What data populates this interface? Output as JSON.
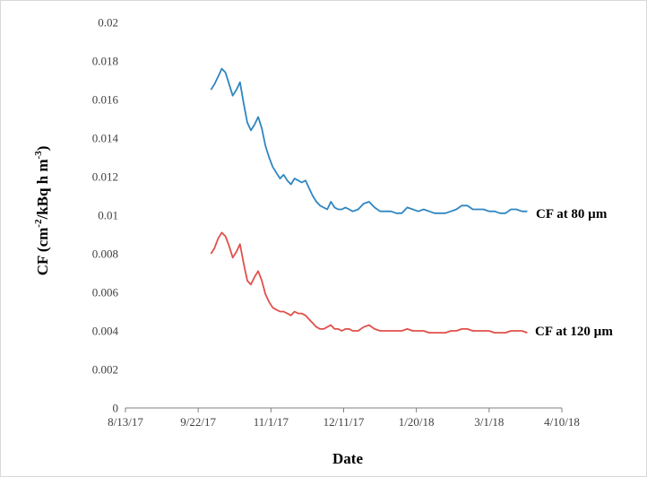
{
  "chart_data": {
    "type": "line",
    "title": "",
    "xlabel": "Date",
    "ylabel_parts": [
      "CF (cm",
      "-2",
      "/kBq h m",
      "-3",
      ")"
    ],
    "x_ticks": [
      "8/13/17",
      "9/22/17",
      "11/1/17",
      "12/11/17",
      "1/20/18",
      "3/1/18",
      "4/10/18"
    ],
    "y_ticks": [
      "0",
      "0.002",
      "0.004",
      "0.006",
      "0.008",
      "0.01",
      "0.012",
      "0.014",
      "0.016",
      "0.018",
      "0.02"
    ],
    "xlim": [
      "2017-08-13",
      "2018-04-10"
    ],
    "ylim": [
      0,
      0.02
    ],
    "grid": false,
    "legend": "none",
    "series": [
      {
        "name": "CF at 80 µm",
        "color": "#2e86c1",
        "x": [
          "2017-09-29",
          "2017-10-01",
          "2017-10-03",
          "2017-10-05",
          "2017-10-07",
          "2017-10-09",
          "2017-10-11",
          "2017-10-13",
          "2017-10-15",
          "2017-10-17",
          "2017-10-19",
          "2017-10-21",
          "2017-10-23",
          "2017-10-25",
          "2017-10-27",
          "2017-10-29",
          "2017-10-31",
          "2017-11-02",
          "2017-11-04",
          "2017-11-06",
          "2017-11-08",
          "2017-11-10",
          "2017-11-12",
          "2017-11-14",
          "2017-11-16",
          "2017-11-18",
          "2017-11-20",
          "2017-11-22",
          "2017-11-24",
          "2017-11-26",
          "2017-11-28",
          "2017-11-30",
          "2017-12-02",
          "2017-12-04",
          "2017-12-06",
          "2017-12-08",
          "2017-12-10",
          "2017-12-12",
          "2017-12-14",
          "2017-12-16",
          "2017-12-19",
          "2017-12-22",
          "2017-12-25",
          "2017-12-28",
          "2017-12-31",
          "2018-01-03",
          "2018-01-06",
          "2018-01-09",
          "2018-01-12",
          "2018-01-15",
          "2018-01-18",
          "2018-01-21",
          "2018-01-24",
          "2018-01-27",
          "2018-01-30",
          "2018-02-02",
          "2018-02-05",
          "2018-02-08",
          "2018-02-11",
          "2018-02-14",
          "2018-02-17",
          "2018-02-20",
          "2018-02-23",
          "2018-02-26",
          "2018-03-01",
          "2018-03-04",
          "2018-03-07",
          "2018-03-10",
          "2018-03-13",
          "2018-03-16",
          "2018-03-19",
          "2018-03-22"
        ],
        "y": [
          0.0165,
          0.0168,
          0.0172,
          0.0176,
          0.0174,
          0.0168,
          0.0162,
          0.0165,
          0.0169,
          0.0158,
          0.0148,
          0.0144,
          0.0147,
          0.0151,
          0.0145,
          0.0136,
          0.013,
          0.0125,
          0.0122,
          0.0119,
          0.0121,
          0.0118,
          0.0116,
          0.0119,
          0.0118,
          0.0117,
          0.0118,
          0.0114,
          0.011,
          0.0107,
          0.0105,
          0.0104,
          0.0103,
          0.0107,
          0.0104,
          0.0103,
          0.0103,
          0.0104,
          0.0103,
          0.0102,
          0.0103,
          0.0106,
          0.0107,
          0.0104,
          0.0102,
          0.0102,
          0.0102,
          0.0101,
          0.0101,
          0.0104,
          0.0103,
          0.0102,
          0.0103,
          0.0102,
          0.0101,
          0.0101,
          0.0101,
          0.0102,
          0.0103,
          0.0105,
          0.0105,
          0.0103,
          0.0103,
          0.0103,
          0.0102,
          0.0102,
          0.0101,
          0.0101,
          0.0103,
          0.0103,
          0.0102,
          0.0102
        ]
      },
      {
        "name": "CF at 120 µm",
        "color": "#e0504a",
        "x": [
          "2017-09-29",
          "2017-10-01",
          "2017-10-03",
          "2017-10-05",
          "2017-10-07",
          "2017-10-09",
          "2017-10-11",
          "2017-10-13",
          "2017-10-15",
          "2017-10-17",
          "2017-10-19",
          "2017-10-21",
          "2017-10-23",
          "2017-10-25",
          "2017-10-27",
          "2017-10-29",
          "2017-10-31",
          "2017-11-02",
          "2017-11-04",
          "2017-11-06",
          "2017-11-08",
          "2017-11-10",
          "2017-11-12",
          "2017-11-14",
          "2017-11-16",
          "2017-11-18",
          "2017-11-20",
          "2017-11-22",
          "2017-11-24",
          "2017-11-26",
          "2017-11-28",
          "2017-11-30",
          "2017-12-02",
          "2017-12-04",
          "2017-12-06",
          "2017-12-08",
          "2017-12-10",
          "2017-12-12",
          "2017-12-14",
          "2017-12-16",
          "2017-12-19",
          "2017-12-22",
          "2017-12-25",
          "2017-12-28",
          "2017-12-31",
          "2018-01-03",
          "2018-01-06",
          "2018-01-09",
          "2018-01-12",
          "2018-01-15",
          "2018-01-18",
          "2018-01-21",
          "2018-01-24",
          "2018-01-27",
          "2018-01-30",
          "2018-02-02",
          "2018-02-05",
          "2018-02-08",
          "2018-02-11",
          "2018-02-14",
          "2018-02-17",
          "2018-02-20",
          "2018-02-23",
          "2018-02-26",
          "2018-03-01",
          "2018-03-04",
          "2018-03-07",
          "2018-03-10",
          "2018-03-13",
          "2018-03-16",
          "2018-03-19",
          "2018-03-22"
        ],
        "y": [
          0.008,
          0.0083,
          0.0088,
          0.0091,
          0.0089,
          0.0084,
          0.0078,
          0.0081,
          0.0085,
          0.0075,
          0.0066,
          0.0064,
          0.0068,
          0.0071,
          0.0066,
          0.0059,
          0.0055,
          0.0052,
          0.0051,
          0.005,
          0.005,
          0.0049,
          0.0048,
          0.005,
          0.0049,
          0.0049,
          0.0048,
          0.0046,
          0.0044,
          0.0042,
          0.0041,
          0.0041,
          0.0042,
          0.0043,
          0.0041,
          0.0041,
          0.004,
          0.0041,
          0.0041,
          0.004,
          0.004,
          0.0042,
          0.0043,
          0.0041,
          0.004,
          0.004,
          0.004,
          0.004,
          0.004,
          0.0041,
          0.004,
          0.004,
          0.004,
          0.0039,
          0.0039,
          0.0039,
          0.0039,
          0.004,
          0.004,
          0.0041,
          0.0041,
          0.004,
          0.004,
          0.004,
          0.004,
          0.0039,
          0.0039,
          0.0039,
          0.004,
          0.004,
          0.004,
          0.0039
        ]
      }
    ]
  }
}
